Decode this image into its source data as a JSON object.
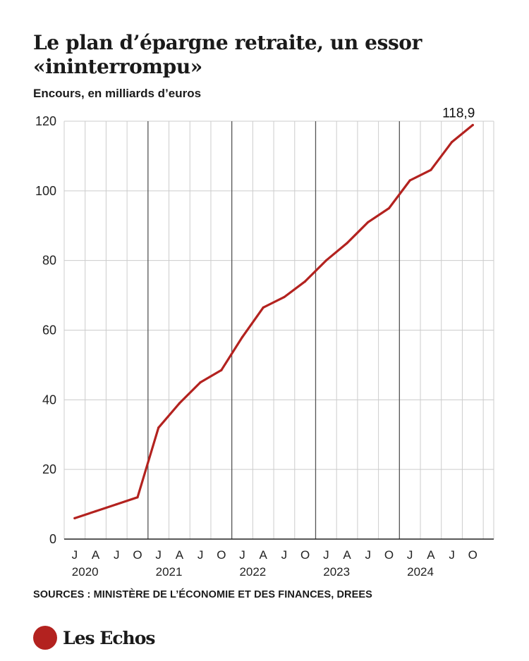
{
  "title": "Le plan d’épargne retraite, un essor «ininterrompu»",
  "subtitle": "Encours, en milliards d’euros",
  "source": "SOURCES : MINISTÈRE DE L’ÉCONOMIE ET DES FINANCES, DREES",
  "brand": "Les Echos",
  "colors": {
    "line": "#b3221f",
    "grid": "#cccccc",
    "year_divider": "#555555",
    "axis": "#222222",
    "brand": "#b3221f"
  },
  "chart_data": {
    "type": "line",
    "title": "Le plan d’épargne retraite, un essor «ininterrompu»",
    "ylabel": "Encours, en milliards d’euros",
    "ylim": [
      0,
      120
    ],
    "yticks": [
      0,
      20,
      40,
      60,
      80,
      100,
      120
    ],
    "grid": true,
    "quarter_labels": [
      "J",
      "A",
      "J",
      "O",
      "J",
      "A",
      "J",
      "O",
      "J",
      "A",
      "J",
      "O",
      "J",
      "A",
      "J",
      "O",
      "J",
      "A",
      "J",
      "O"
    ],
    "years": [
      "2020",
      "2021",
      "2022",
      "2023",
      "2024"
    ],
    "series": [
      {
        "values": [
          6,
          8,
          10,
          12,
          32,
          39,
          45,
          48.5,
          58,
          66.5,
          69.5,
          74,
          80,
          85,
          91,
          95,
          103,
          106,
          114,
          118.9
        ]
      }
    ],
    "end_label": "118,9"
  }
}
